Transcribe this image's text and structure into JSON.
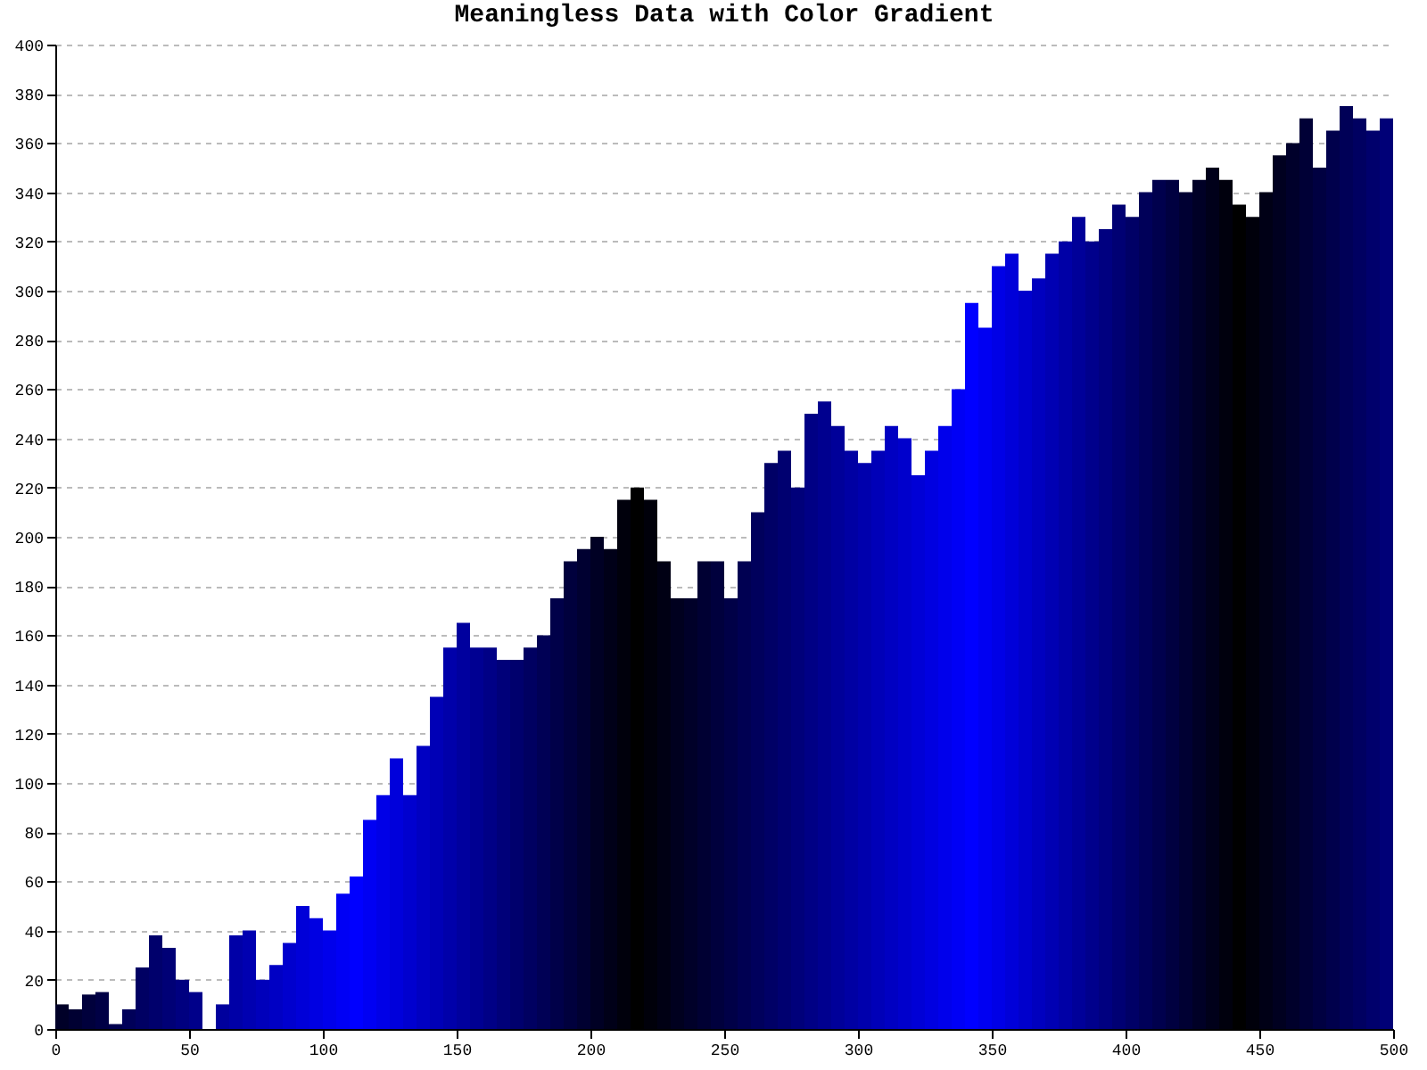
{
  "chart_data": {
    "type": "bar",
    "title": "Meaningless Data with Color Gradient",
    "x": [
      0,
      5,
      10,
      15,
      20,
      25,
      30,
      35,
      40,
      45,
      50,
      55,
      60,
      65,
      70,
      75,
      80,
      85,
      90,
      95,
      100,
      105,
      110,
      115,
      120,
      125,
      130,
      135,
      140,
      145,
      150,
      155,
      160,
      165,
      170,
      175,
      180,
      185,
      190,
      195,
      200,
      205,
      210,
      215,
      220,
      225,
      230,
      235,
      240,
      245,
      250,
      255,
      260,
      265,
      270,
      275,
      280,
      285,
      290,
      295,
      300,
      305,
      310,
      315,
      320,
      325,
      330,
      335,
      340,
      345,
      350,
      355,
      360,
      365,
      370,
      375,
      380,
      385,
      390,
      395,
      400,
      405,
      410,
      415,
      420,
      425,
      430,
      435,
      440,
      445,
      450,
      455,
      460,
      465,
      470,
      475,
      480,
      485,
      490,
      495
    ],
    "values": [
      10,
      8,
      14,
      15,
      2,
      8,
      25,
      38,
      33,
      20,
      15,
      0,
      10,
      38,
      40,
      20,
      26,
      35,
      50,
      45,
      40,
      55,
      62,
      85,
      95,
      110,
      95,
      115,
      135,
      155,
      165,
      155,
      155,
      150,
      150,
      155,
      160,
      175,
      190,
      195,
      200,
      195,
      215,
      220,
      215,
      190,
      175,
      175,
      190,
      190,
      175,
      190,
      210,
      230,
      235,
      220,
      250,
      255,
      245,
      235,
      230,
      235,
      245,
      240,
      225,
      235,
      245,
      260,
      295,
      285,
      310,
      315,
      300,
      305,
      315,
      320,
      330,
      320,
      325,
      335,
      330,
      340,
      345,
      345,
      340,
      345,
      350,
      345,
      335,
      330,
      340,
      355,
      360,
      370,
      350,
      365,
      375,
      370,
      365,
      370
    ],
    "colors": [
      "#000028",
      "#000032",
      "#00003c",
      "#000045",
      "#00004f",
      "#000059",
      "#000063",
      "#00006c",
      "#000076",
      "#000080",
      "#00008a",
      "#000094",
      "#00009d",
      "#0000a7",
      "#0000b1",
      "#0000bb",
      "#0000c4",
      "#0000ce",
      "#0000d8",
      "#0000e2",
      "#0000eb",
      "#0000f5",
      "#0000ff",
      "#0000f3",
      "#0000e7",
      "#0000db",
      "#0000cf",
      "#0000c2",
      "#0000b6",
      "#0000aa",
      "#00009e",
      "#000092",
      "#000086",
      "#000079",
      "#00006d",
      "#000061",
      "#000055",
      "#000049",
      "#00003d",
      "#000031",
      "#000024",
      "#000018",
      "#00000c",
      "#000000",
      "#00000a",
      "#000014",
      "#00001f",
      "#000029",
      "#000033",
      "#00003d",
      "#000047",
      "#000052",
      "#00005c",
      "#000066",
      "#000070",
      "#00007a",
      "#000085",
      "#00008f",
      "#000099",
      "#0000a3",
      "#0000ad",
      "#0000b8",
      "#0000c2",
      "#0000cc",
      "#0000d6",
      "#0000e0",
      "#0000eb",
      "#0000f5",
      "#0000ff",
      "#0000f2",
      "#0000e6",
      "#0000d9",
      "#0000cc",
      "#0000bf",
      "#0000b3",
      "#0000a6",
      "#000099",
      "#00008c",
      "#000080",
      "#000073",
      "#000066",
      "#000059",
      "#00004d",
      "#000040",
      "#000033",
      "#000026",
      "#00001a",
      "#00000d",
      "#000000",
      "#00000b",
      "#000016",
      "#000020",
      "#00002b",
      "#000036",
      "#000041",
      "#00004c",
      "#000057",
      "#000061",
      "#00006c",
      "#000077"
    ],
    "xlim": [
      0,
      500
    ],
    "xticks": [
      0,
      50,
      100,
      150,
      200,
      250,
      300,
      350,
      400,
      450,
      500
    ],
    "ylim": [
      0,
      400
    ],
    "yticks": [
      0,
      20,
      40,
      60,
      80,
      100,
      120,
      140,
      160,
      180,
      200,
      220,
      240,
      260,
      280,
      300,
      320,
      340,
      360,
      380,
      400
    ],
    "grid": "y"
  }
}
